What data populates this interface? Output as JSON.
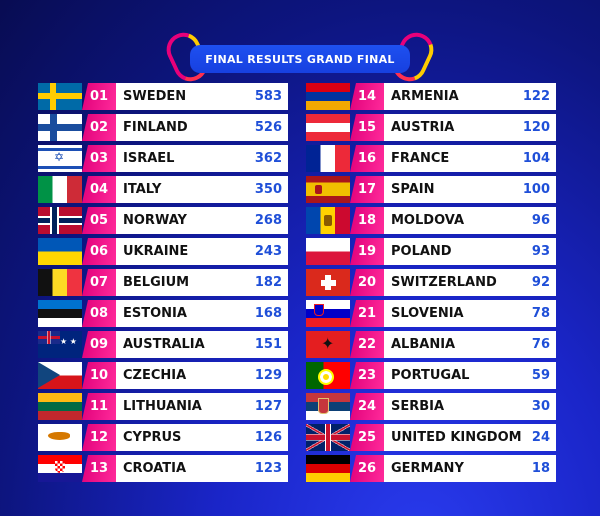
{
  "header": {
    "title": "FINAL RESULTS GRAND FINAL"
  },
  "colors": {
    "rank_bg": "#e6007e",
    "points": "#1f4fd8",
    "background": "#1a25c8"
  },
  "results": [
    {
      "rank": "01",
      "country": "SWEDEN",
      "points": "583",
      "flag": "se"
    },
    {
      "rank": "02",
      "country": "FINLAND",
      "points": "526",
      "flag": "fi"
    },
    {
      "rank": "03",
      "country": "ISRAEL",
      "points": "362",
      "flag": "il"
    },
    {
      "rank": "04",
      "country": "ITALY",
      "points": "350",
      "flag": "it"
    },
    {
      "rank": "05",
      "country": "NORWAY",
      "points": "268",
      "flag": "no"
    },
    {
      "rank": "06",
      "country": "UKRAINE",
      "points": "243",
      "flag": "ua"
    },
    {
      "rank": "07",
      "country": "BELGIUM",
      "points": "182",
      "flag": "be"
    },
    {
      "rank": "08",
      "country": "ESTONIA",
      "points": "168",
      "flag": "ee"
    },
    {
      "rank": "09",
      "country": "AUSTRALIA",
      "points": "151",
      "flag": "au"
    },
    {
      "rank": "10",
      "country": "CZECHIA",
      "points": "129",
      "flag": "cz"
    },
    {
      "rank": "11",
      "country": "LITHUANIA",
      "points": "127",
      "flag": "lt"
    },
    {
      "rank": "12",
      "country": "CYPRUS",
      "points": "126",
      "flag": "cy"
    },
    {
      "rank": "13",
      "country": "CROATIA",
      "points": "123",
      "flag": "hr"
    },
    {
      "rank": "14",
      "country": "ARMENIA",
      "points": "122",
      "flag": "am"
    },
    {
      "rank": "15",
      "country": "AUSTRIA",
      "points": "120",
      "flag": "at"
    },
    {
      "rank": "16",
      "country": "FRANCE",
      "points": "104",
      "flag": "fr"
    },
    {
      "rank": "17",
      "country": "SPAIN",
      "points": "100",
      "flag": "es"
    },
    {
      "rank": "18",
      "country": "MOLDOVA",
      "points": "96",
      "flag": "md"
    },
    {
      "rank": "19",
      "country": "POLAND",
      "points": "93",
      "flag": "pl"
    },
    {
      "rank": "20",
      "country": "SWITZERLAND",
      "points": "92",
      "flag": "ch"
    },
    {
      "rank": "21",
      "country": "SLOVENIA",
      "points": "78",
      "flag": "si"
    },
    {
      "rank": "22",
      "country": "ALBANIA",
      "points": "76",
      "flag": "al"
    },
    {
      "rank": "23",
      "country": "PORTUGAL",
      "points": "59",
      "flag": "pt"
    },
    {
      "rank": "24",
      "country": "SERBIA",
      "points": "30",
      "flag": "rs"
    },
    {
      "rank": "25",
      "country": "UNITED KINGDOM",
      "points": "24",
      "flag": "gb"
    },
    {
      "rank": "26",
      "country": "GERMANY",
      "points": "18",
      "flag": "de"
    }
  ]
}
